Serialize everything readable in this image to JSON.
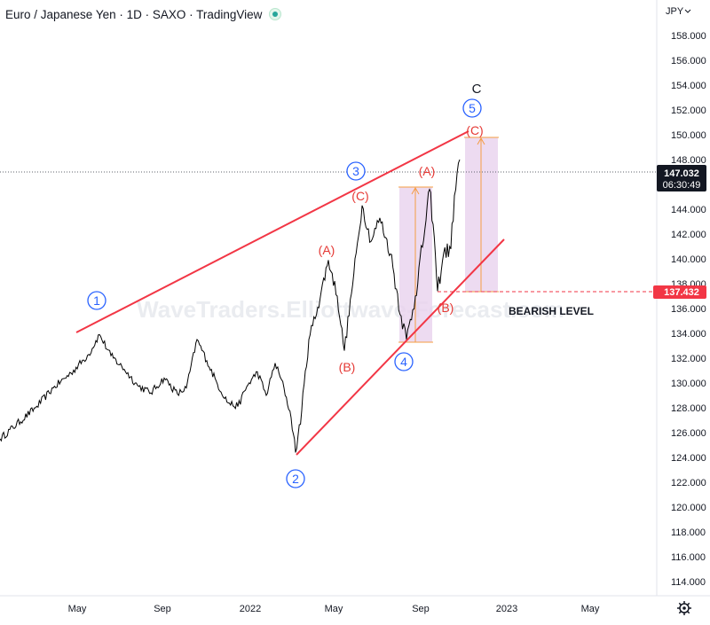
{
  "header": {
    "title": "Euro / Japanese Yen · 1D · SAXO · TradingView"
  },
  "currency": "JPY",
  "settings_icon": "gear-icon",
  "colors": {
    "wedge": "#f23645",
    "wave_blue": "#2962ff",
    "wave_red": "#e53935",
    "box_fill": "#e8d2ee",
    "box_line": "#f59c42",
    "price_bg": "#131722",
    "bearish_bg": "#f23645"
  },
  "watermark": "WaveTraders.Elliottwave-Forecast.com",
  "bearish_label": "BEARISH LEVEL",
  "chart_data": {
    "type": "line",
    "x_ticks": [
      "May",
      "Sep",
      "2022",
      "May",
      "Sep",
      "2023",
      "May"
    ],
    "y_ticks": [
      "158.000",
      "156.000",
      "154.000",
      "152.000",
      "150.000",
      "148.000",
      "146.000",
      "144.000",
      "142.000",
      "140.000",
      "138.000",
      "136.000",
      "134.000",
      "132.000",
      "130.000",
      "128.000",
      "126.000",
      "124.000",
      "122.000",
      "120.000",
      "118.000",
      "116.000",
      "114.000"
    ],
    "ylim": [
      113,
      159
    ],
    "last_price": "147.032",
    "countdown": "06:30:49",
    "bearish_level": "137.432",
    "series": [
      {
        "values": [
          [
            0,
            125.5
          ],
          [
            40,
            128.0
          ],
          [
            60,
            129.6
          ],
          [
            80,
            130.8
          ],
          [
            100,
            132.3
          ],
          [
            112,
            133.9
          ],
          [
            125,
            132.2
          ],
          [
            140,
            131.1
          ],
          [
            155,
            129.8
          ],
          [
            170,
            129.2
          ],
          [
            185,
            130.4
          ],
          [
            200,
            129.1
          ],
          [
            210,
            129.6
          ],
          [
            222,
            133.5
          ],
          [
            233,
            131.8
          ],
          [
            245,
            129.9
          ],
          [
            257,
            128.4
          ],
          [
            268,
            128.1
          ],
          [
            278,
            129.7
          ],
          [
            290,
            130.9
          ],
          [
            300,
            129.0
          ],
          [
            310,
            131.6
          ],
          [
            320,
            129.6
          ],
          [
            328,
            127.2
          ],
          [
            333,
            124.4
          ],
          [
            340,
            127.8
          ],
          [
            348,
            133.5
          ],
          [
            358,
            136.1
          ],
          [
            370,
            139.9
          ],
          [
            380,
            137.0
          ],
          [
            388,
            132.6
          ],
          [
            396,
            137.2
          ],
          [
            408,
            144.3
          ],
          [
            418,
            141.4
          ],
          [
            428,
            143.3
          ],
          [
            440,
            140.4
          ],
          [
            452,
            135.4
          ],
          [
            458,
            133.5
          ],
          [
            468,
            137.0
          ],
          [
            480,
            143.1
          ],
          [
            484,
            145.6
          ],
          [
            488,
            142.8
          ],
          [
            493,
            137.4
          ],
          [
            500,
            140.5
          ],
          [
            508,
            140.8
          ],
          [
            512,
            145.1
          ],
          [
            518,
            148.0
          ]
        ]
      }
    ],
    "annotations": {
      "waves_blue": [
        "1",
        "2",
        "3",
        "4",
        "5"
      ],
      "waves_red": [
        "(A)",
        "(B)",
        "(C)",
        "(A)",
        "(B)",
        "(C)"
      ],
      "top_label": "C"
    }
  }
}
